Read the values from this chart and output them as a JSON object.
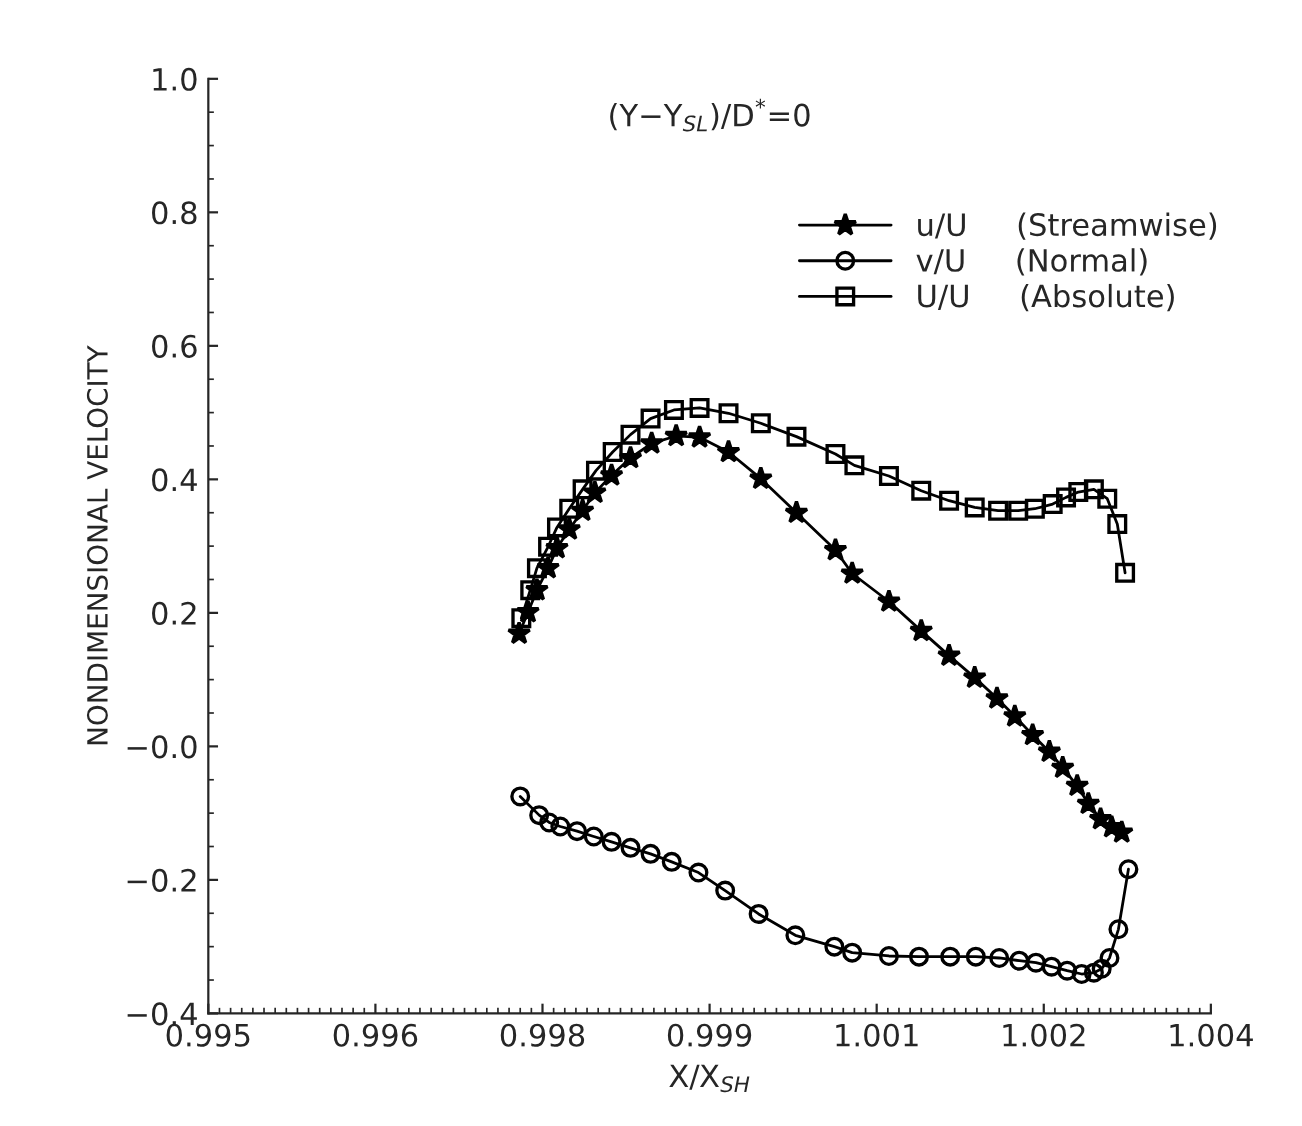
{
  "chart_data": {
    "type": "line",
    "xlabel": "X/X$_{SH}$",
    "ylabel": "NONDIMENSIONAL VELOCITY",
    "annotations": [
      "(Y−Y$_{SL}$)/D$^{*}$=0"
    ],
    "xlim": [
      0.995,
      1.004
    ],
    "xticks": [
      0.995,
      {
        "value": 0.9965,
        "label": "0.996"
      },
      0.998,
      {
        "value": 0.9995,
        "label": "0.999"
      },
      1.001,
      {
        "value": 1.0025,
        "label": "1.002"
      },
      1.004
    ],
    "ylim": [
      -0.4,
      1.0
    ],
    "yticks": [
      {
        "value": -0.4,
        "label": "−0.4"
      },
      {
        "value": -0.2,
        "label": "−0.2"
      },
      {
        "value": 0,
        "label": "−0.0"
      },
      0.2,
      0.4,
      0.6,
      0.8,
      {
        "value": 1.0,
        "label": "1.0"
      }
    ],
    "grid": false,
    "legend": "top right",
    "line_style": "solid",
    "series": [
      {
        "name": "u/U     (Streamwise)",
        "color": "#000000",
        "marker": "star",
        "x": [
          0.99779,
          0.99787,
          0.99795,
          0.99805,
          0.99813,
          0.99824,
          0.99836,
          0.99847,
          0.99862,
          0.99879,
          0.99898,
          0.9992,
          0.99941,
          0.99967,
          0.99996,
          1.00028,
          1.00063,
          1.00078,
          1.00111,
          1.0014,
          1.00165,
          1.00188,
          1.00208,
          1.00224,
          1.0024,
          1.00255,
          1.00267,
          1.0028,
          1.0029,
          1.00301,
          1.00311,
          1.0032
        ],
        "values": [
          0.169,
          0.201,
          0.234,
          0.267,
          0.297,
          0.325,
          0.353,
          0.38,
          0.406,
          0.432,
          0.454,
          0.465,
          0.463,
          0.441,
          0.401,
          0.35,
          0.294,
          0.259,
          0.217,
          0.173,
          0.136,
          0.103,
          0.072,
          0.045,
          0.017,
          -0.008,
          -0.032,
          -0.059,
          -0.086,
          -0.109,
          -0.121,
          -0.129
        ]
      },
      {
        "name": "v/U     (Normal)",
        "color": "#000000",
        "marker": "circle",
        "x": [
          0.9978,
          0.99797,
          0.99806,
          0.99816,
          0.99831,
          0.99846,
          0.99862,
          0.99879,
          0.99897,
          0.99916,
          0.9994,
          0.99964,
          0.99994,
          1.00027,
          1.00062,
          1.00078,
          1.00111,
          1.00138,
          1.00166,
          1.00189,
          1.0021,
          1.00228,
          1.00243,
          1.00257,
          1.00271,
          1.00284,
          1.00295,
          1.00302,
          1.00309,
          1.00317,
          1.00326
        ],
        "values": [
          -0.075,
          -0.103,
          -0.114,
          -0.12,
          -0.127,
          -0.135,
          -0.143,
          -0.152,
          -0.161,
          -0.173,
          -0.189,
          -0.216,
          -0.251,
          -0.283,
          -0.3,
          -0.309,
          -0.314,
          -0.315,
          -0.315,
          -0.315,
          -0.317,
          -0.321,
          -0.324,
          -0.33,
          -0.336,
          -0.341,
          -0.339,
          -0.333,
          -0.317,
          -0.274,
          -0.184
        ]
      },
      {
        "name": "U/U     (Absolute)",
        "color": "#000000",
        "marker": "square",
        "x": [
          0.99781,
          0.99789,
          0.99795,
          0.99805,
          0.99813,
          0.99824,
          0.99836,
          0.99848,
          0.99863,
          0.99879,
          0.99897,
          0.99918,
          0.99941,
          0.99967,
          0.99996,
          1.00028,
          1.00063,
          1.0008,
          1.00111,
          1.0014,
          1.00165,
          1.00188,
          1.00209,
          1.00227,
          1.00242,
          1.00258,
          1.0027,
          1.00281,
          1.00295,
          1.00307,
          1.00316,
          1.00323
        ],
        "values": [
          0.192,
          0.234,
          0.267,
          0.299,
          0.328,
          0.356,
          0.385,
          0.413,
          0.441,
          0.467,
          0.491,
          0.504,
          0.507,
          0.499,
          0.484,
          0.464,
          0.438,
          0.421,
          0.405,
          0.383,
          0.368,
          0.358,
          0.353,
          0.353,
          0.356,
          0.363,
          0.373,
          0.381,
          0.385,
          0.371,
          0.333,
          0.26
        ]
      }
    ]
  }
}
